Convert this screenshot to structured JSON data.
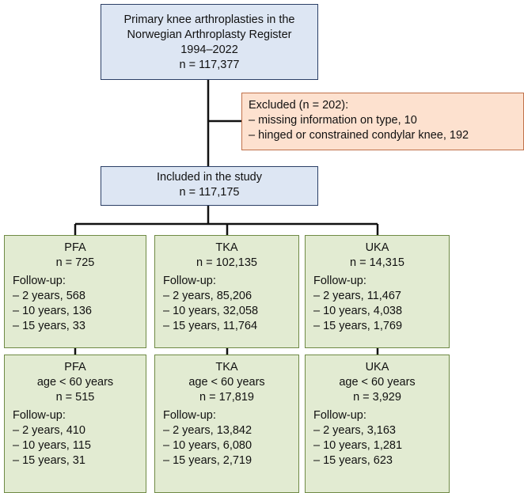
{
  "top": {
    "lines": [
      "Primary knee arthroplasties in the",
      "Norwegian Arthroplasty Register",
      "1994–2022",
      "n = 117,377"
    ]
  },
  "excluded": {
    "lines": [
      "Excluded (n = 202):",
      "– missing information on type, 10",
      "– hinged or constrained condylar knee, 192"
    ]
  },
  "included": {
    "lines": [
      "Included in the study",
      "n = 117,175"
    ]
  },
  "groups": [
    {
      "heading": [
        "PFA",
        "n = 725"
      ],
      "followup": [
        "Follow-up:",
        "– 2 years, 568",
        "– 10 years, 136",
        "– 15 years, 33"
      ]
    },
    {
      "heading": [
        "TKA",
        "n = 102,135"
      ],
      "followup": [
        "Follow-up:",
        "– 2 years, 85,206",
        "– 10 years, 32,058",
        "– 15 years, 11,764"
      ]
    },
    {
      "heading": [
        "UKA",
        "n = 14,315"
      ],
      "followup": [
        "Follow-up:",
        "– 2 years, 11,467",
        "– 10 years, 4,038",
        "– 15 years, 1,769"
      ]
    }
  ],
  "subgroups": [
    {
      "heading": [
        "PFA",
        "age < 60 years",
        "n = 515"
      ],
      "followup": [
        "Follow-up:",
        "– 2 years, 410",
        "– 10 years, 115",
        "– 15 years, 31"
      ]
    },
    {
      "heading": [
        "TKA",
        "age < 60 years",
        "n = 17,819"
      ],
      "followup": [
        "Follow-up:",
        "– 2 years, 13,842",
        "– 10 years, 6,080",
        "– 15 years, 2,719"
      ]
    },
    {
      "heading": [
        "UKA",
        "age < 60 years",
        "n = 3,929"
      ],
      "followup": [
        "Follow-up:",
        "– 2 years, 3,163",
        "– 10 years, 1,281",
        "– 15 years, 623"
      ]
    }
  ]
}
